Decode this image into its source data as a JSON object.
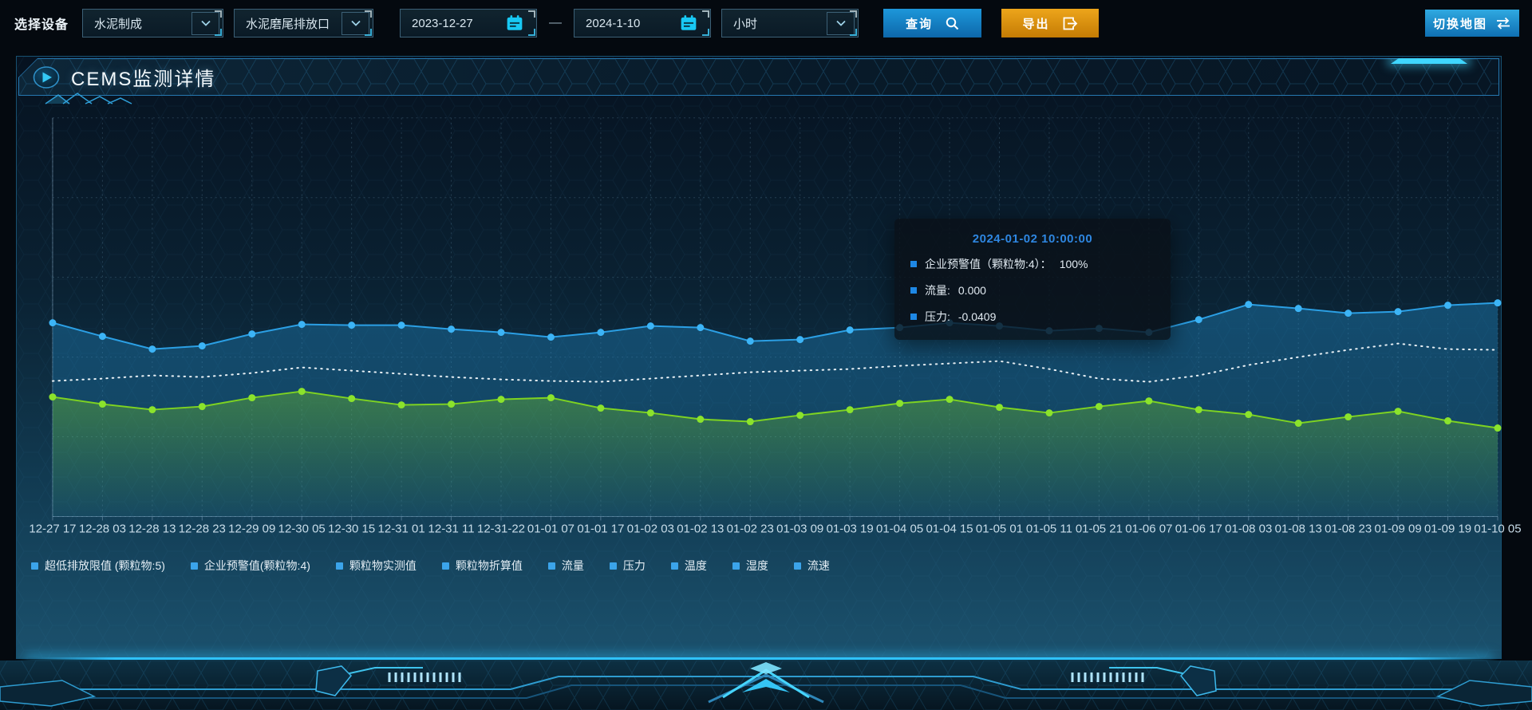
{
  "toolbar": {
    "device_label": "选择设备",
    "device_type": "水泥制成",
    "outlet": "水泥磨尾排放口",
    "date_start": "2023-12-27",
    "date_separator": "—",
    "date_end": "2024-1-10",
    "interval": "小时",
    "query_label": "查询",
    "export_label": "导出",
    "switch_map_label": "切换地图"
  },
  "panel": {
    "title": "CEMS监测详情"
  },
  "tooltip": {
    "title": "2024-01-02 10:00:00",
    "rows": [
      {
        "label": "企业预警值（颗粒物:4）：",
        "value": "100%"
      },
      {
        "label": "流量:",
        "value": "0.000"
      },
      {
        "label": "压力:",
        "value": "-0.0409"
      }
    ]
  },
  "colors": {
    "accent_cyan": "#3fd6ff",
    "button_blue": "#1285c9",
    "export_orange": "#d9920f",
    "tooltip_title_blue": "#2e86e0",
    "legend_marker_blue": "#3ba4ea"
  },
  "chart_data": {
    "type": "line",
    "title": "CEMS监测详情",
    "xlabel": "",
    "ylabel": "",
    "ylim": [
      0,
      100
    ],
    "grid": true,
    "legend_position": "bottom",
    "x_labels": [
      "12-27 17",
      "12-28 03",
      "12-28 13",
      "12-28 23",
      "12-29 09",
      "12-30 05",
      "12-30 15",
      "12-31 01",
      "12-31 11",
      "12-31-22",
      "01-01 07",
      "01-01 17",
      "01-02 03",
      "01-02 13",
      "01-02 23",
      "01-03 09",
      "01-03 19",
      "01-04 05",
      "01-04 15",
      "01-05 01",
      "01-05 11",
      "01-05 21",
      "01-06 07",
      "01-06 17",
      "01-08 03",
      "01-08 13",
      "01-08 23",
      "01-09 09",
      "01-09 19",
      "01-10 05"
    ],
    "series": [
      {
        "name": "企业预警值（颗粒物:4）",
        "color": "#2b9fe4",
        "dot_color": "#3cb4f6",
        "style": "solid",
        "markers": true,
        "area": true,
        "area_color": "#1f86c2",
        "values": [
          48.6,
          45.2,
          42.0,
          42.8,
          45.8,
          48.2,
          48.0,
          48.0,
          47.0,
          46.2,
          45.0,
          46.2,
          47.8,
          47.4,
          44.0,
          44.4,
          46.8,
          47.4,
          48.6,
          47.8,
          46.6,
          47.2,
          46.2,
          49.4,
          53.2,
          52.2,
          51.0,
          51.4,
          53.0,
          53.6
        ]
      },
      {
        "name": "流量",
        "color": "#e9f1f6",
        "style": "dotted",
        "markers": false,
        "area": false,
        "values": [
          34.0,
          34.6,
          35.4,
          35.0,
          36.0,
          37.4,
          36.6,
          35.8,
          35.0,
          34.4,
          34.0,
          33.8,
          34.6,
          35.4,
          36.2,
          36.6,
          37.0,
          37.8,
          38.4,
          39.0,
          37.0,
          34.6,
          33.8,
          35.4,
          38.0,
          40.0,
          41.8,
          43.4,
          42.0,
          41.8
        ]
      },
      {
        "name": "压力",
        "color": "#7ed321",
        "dot_color": "#8be32c",
        "style": "solid",
        "markers": true,
        "area": true,
        "area_color": "#7ed321",
        "values": [
          30.0,
          28.2,
          26.8,
          27.6,
          29.8,
          31.4,
          29.6,
          28.0,
          28.2,
          29.4,
          29.8,
          27.2,
          26.0,
          24.4,
          23.8,
          25.4,
          26.8,
          28.4,
          29.4,
          27.4,
          26.0,
          27.6,
          29.0,
          26.8,
          25.6,
          23.4,
          25.0,
          26.4,
          24.0,
          22.2
        ]
      }
    ],
    "legend": [
      "超低排放限值 (颗粒物:5)",
      "企业预警值(颗粒物:4)",
      "颗粒物实测值",
      "颗粒物折算值",
      "流量",
      "压力",
      "温度",
      "湿度",
      "流速"
    ],
    "legend_marker_color": "#3ba4ea"
  }
}
